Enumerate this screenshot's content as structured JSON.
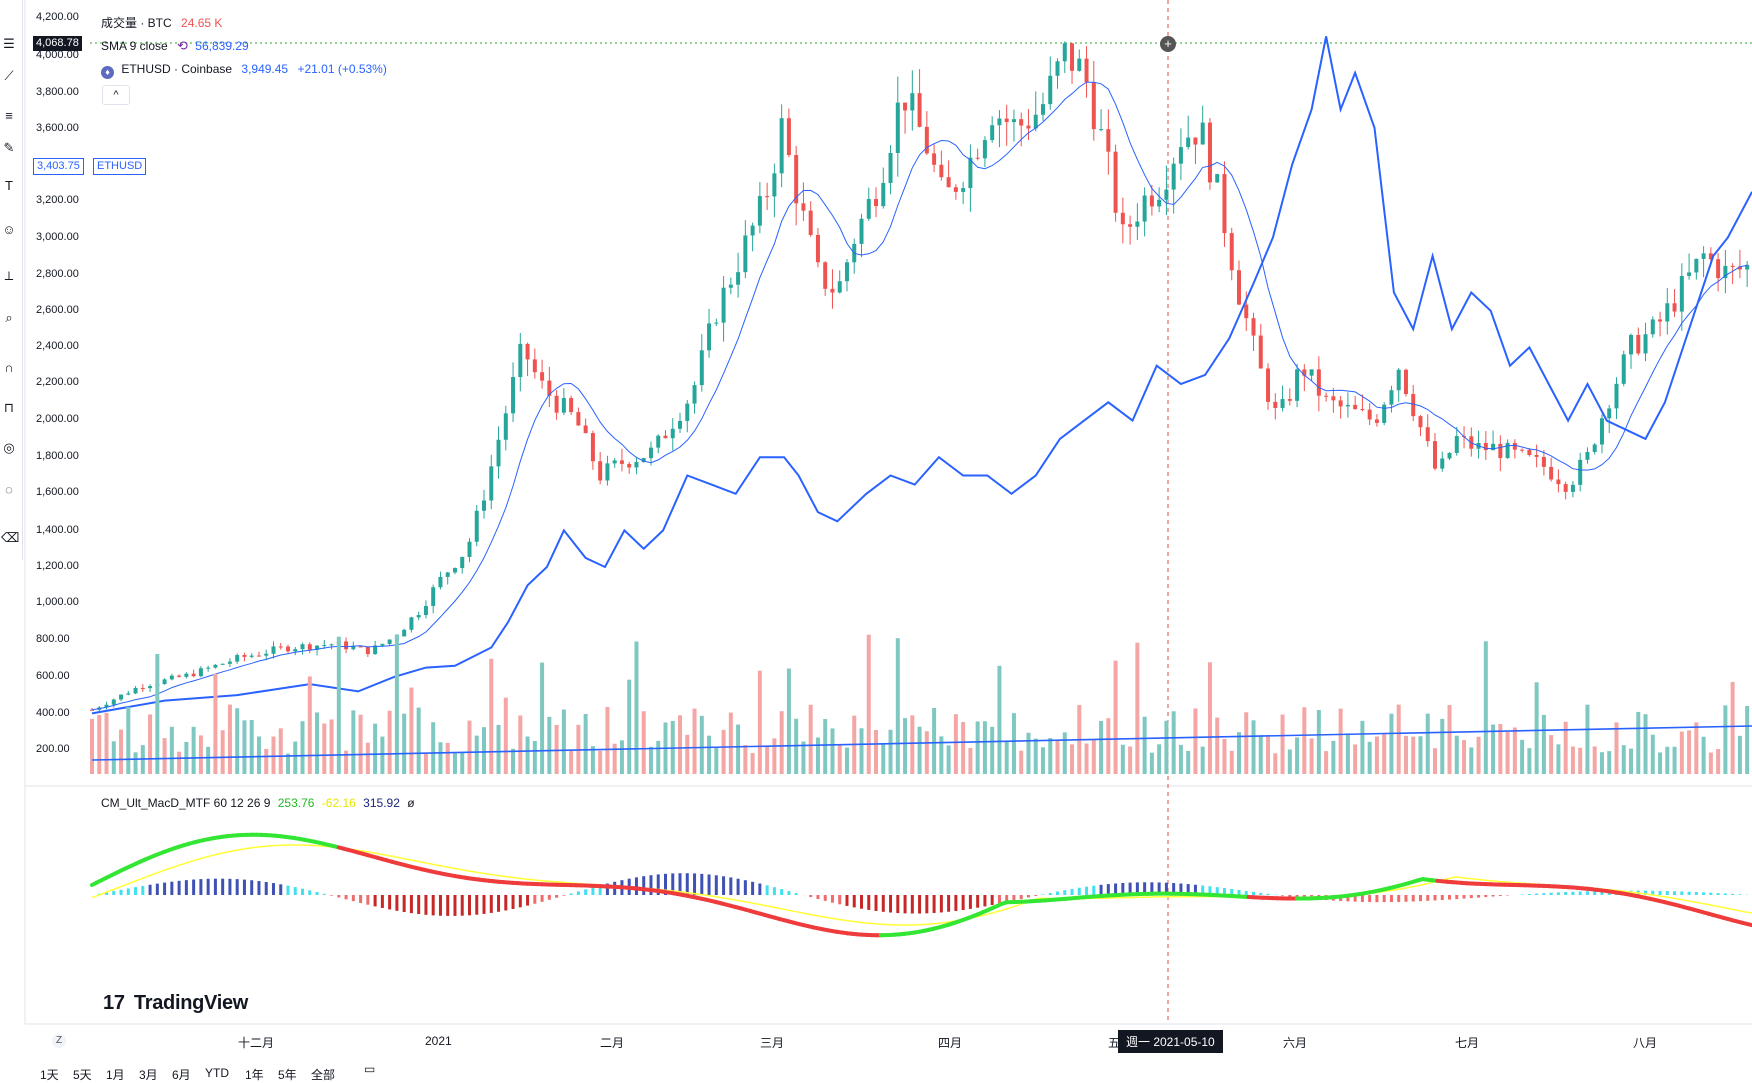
{
  "legend": {
    "volume_label": "成交量 · BTC",
    "volume_value": "24.65 K",
    "sma_label": "SMA 9 close",
    "sma_value": "56,839.29",
    "symbol_label": "ETHUSD · Coinbase",
    "symbol_value": "3,949.45",
    "symbol_change": "+21.01 (+0.53%)",
    "collapse_icon": "chevron-up-icon",
    "macd_label": "CM_Ult_MacD_MTF 60 12 26 9",
    "macd_v1": "253.76",
    "macd_v2": "-62.16",
    "macd_v3": "315.92",
    "macd_v4": "ø"
  },
  "price_tags": {
    "crosshair_price": "4,068.78",
    "last_price": "3,403.75",
    "last_symbol": "ETHUSD"
  },
  "price_axis": [
    "4,200.00",
    "4,000.00",
    "3,800.00",
    "3,600.00",
    "3,200.00",
    "3,000.00",
    "2,800.00",
    "2,600.00",
    "2,400.00",
    "2,200.00",
    "2,000.00",
    "1,800.00",
    "1,600.00",
    "1,400.00",
    "1,200.00",
    "1,000.00",
    "800.00",
    "600.00",
    "400.00",
    "200.00"
  ],
  "time_axis": [
    {
      "label": "十二月"
    },
    {
      "label": "2021"
    },
    {
      "label": "二月"
    },
    {
      "label": "三月"
    },
    {
      "label": "四月"
    },
    {
      "label": "五"
    },
    {
      "label": "六月"
    },
    {
      "label": "七月"
    },
    {
      "label": "八月"
    }
  ],
  "crosshair_date": "週一  2021-05-10",
  "timezone_btn": "Z",
  "range_buttons": [
    "1天",
    "5天",
    "1月",
    "3月",
    "6月",
    "YTD",
    "1年",
    "5年",
    "全部"
  ],
  "brand": "TradingView",
  "colors": {
    "up": "#26a69a",
    "down": "#ef5350",
    "btc_line": "#2962ff",
    "sma": "#2962ff",
    "macd_up": "#33e633",
    "macd_down": "#ef3b3b",
    "signal": "#ffff33"
  }
}
